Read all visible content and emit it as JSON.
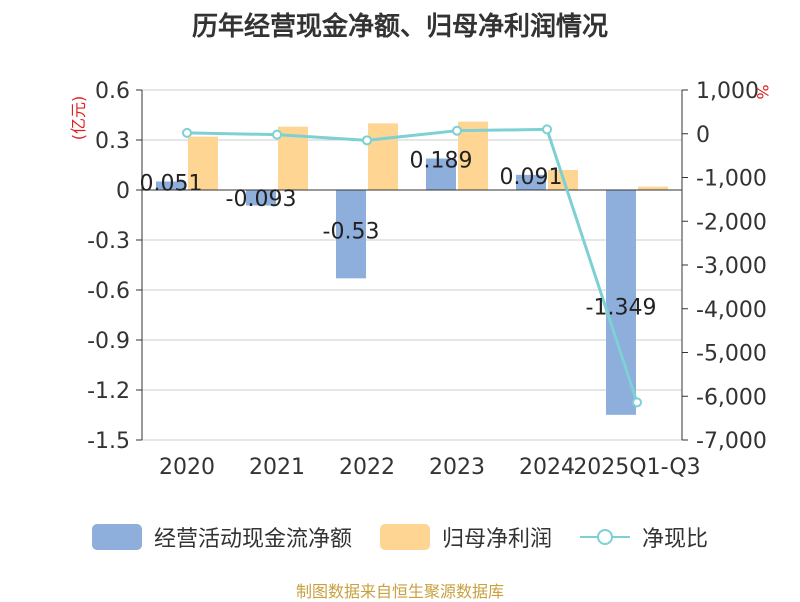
{
  "title": "历年经营现金净额、归母净利润情况",
  "source": "制图数据来自恒生聚源数据库",
  "colors": {
    "cash": "#8eaedc",
    "profit": "#fed592",
    "ratio": "#7dd0d4",
    "unit": "#e02020",
    "axis": "#333333",
    "grid": "#cccccc"
  },
  "legend": [
    "经营活动现金流净额",
    "归母净利润",
    "净现比"
  ],
  "chart_data": {
    "type": "bar",
    "title": "历年经营现金净额、归母净利润情况",
    "categories": [
      "2020",
      "2021",
      "2022",
      "2023",
      "2024",
      "2025Q1-Q3"
    ],
    "y_left": {
      "unit": "(亿元)",
      "range": [
        -1.5,
        0.6
      ],
      "ticks": [
        "0.6",
        "0.3",
        "0",
        "-0.3",
        "-0.6",
        "-0.9",
        "-1.2",
        "-1.5"
      ]
    },
    "y_right": {
      "unit": "%",
      "range": [
        -7000,
        1000
      ],
      "ticks": [
        "1,000",
        "0",
        "-1,000",
        "-2,000",
        "-3,000",
        "-4,000",
        "-5,000",
        "-6,000",
        "-7,000"
      ]
    },
    "series": [
      {
        "name": "经营活动现金流净额",
        "type": "bar",
        "axis": "left",
        "values": [
          0.051,
          -0.093,
          -0.53,
          0.189,
          0.091,
          -1.349
        ],
        "labels": [
          "0.051",
          "-0.093",
          "-0.53",
          "0.189",
          "0.091",
          "-1.349"
        ]
      },
      {
        "name": "归母净利润",
        "type": "bar",
        "axis": "left",
        "values": [
          0.32,
          0.38,
          0.4,
          0.41,
          0.12,
          0.02
        ]
      },
      {
        "name": "净现比",
        "type": "line",
        "axis": "right",
        "values": [
          20,
          -20,
          -150,
          70,
          100,
          -6140
        ]
      }
    ]
  }
}
